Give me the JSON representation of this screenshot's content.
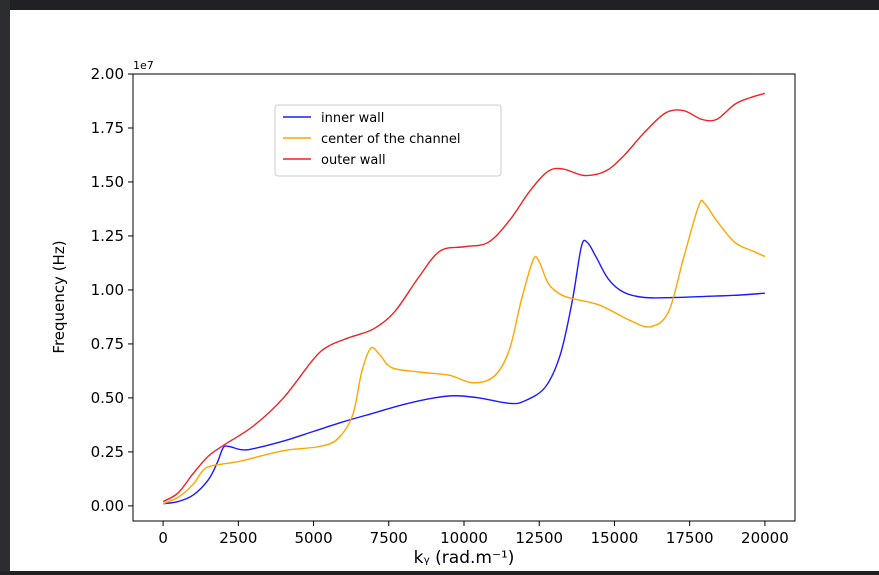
{
  "chart_data": {
    "type": "line",
    "xlabel": "kᵧ (rad.m⁻¹)",
    "ylabel": "Frequency (Hz)",
    "y_offset_label": "1e7",
    "xlim": [
      -1000,
      21000
    ],
    "ylim": [
      -0.07,
      2.0
    ],
    "x_ticks": [
      0,
      2500,
      5000,
      7500,
      10000,
      12500,
      15000,
      17500,
      20000
    ],
    "x_tick_labels": [
      "0",
      "2500",
      "5000",
      "7500",
      "10000",
      "12500",
      "15000",
      "17500",
      "20000"
    ],
    "y_ticks": [
      0.0,
      0.25,
      0.5,
      0.75,
      1.0,
      1.25,
      1.5,
      1.75,
      2.0
    ],
    "y_tick_labels": [
      "0.00",
      "0.25",
      "0.50",
      "0.75",
      "1.00",
      "1.25",
      "1.50",
      "1.75",
      "2.00"
    ],
    "y_unit_multiplier": 10000000,
    "grid": false,
    "legend_position": "upper-left-center",
    "series": [
      {
        "name": "inner wall",
        "color": "#1a1aff",
        "points": [
          [
            0,
            0.01
          ],
          [
            500,
            0.02
          ],
          [
            1000,
            0.05
          ],
          [
            1500,
            0.12
          ],
          [
            1800,
            0.2
          ],
          [
            2000,
            0.27
          ],
          [
            2200,
            0.275
          ],
          [
            2600,
            0.26
          ],
          [
            3000,
            0.265
          ],
          [
            4000,
            0.3
          ],
          [
            5000,
            0.345
          ],
          [
            6000,
            0.39
          ],
          [
            7000,
            0.43
          ],
          [
            8000,
            0.47
          ],
          [
            9000,
            0.5
          ],
          [
            9700,
            0.51
          ],
          [
            10500,
            0.5
          ],
          [
            11500,
            0.475
          ],
          [
            12000,
            0.485
          ],
          [
            12700,
            0.55
          ],
          [
            13200,
            0.7
          ],
          [
            13600,
            0.95
          ],
          [
            13900,
            1.2
          ],
          [
            14100,
            1.22
          ],
          [
            14400,
            1.15
          ],
          [
            14800,
            1.05
          ],
          [
            15300,
            0.99
          ],
          [
            16000,
            0.965
          ],
          [
            17000,
            0.965
          ],
          [
            18000,
            0.97
          ],
          [
            19000,
            0.975
          ],
          [
            20000,
            0.985
          ]
        ]
      },
      {
        "name": "center of the channel",
        "color": "#ffa500",
        "points": [
          [
            0,
            0.01
          ],
          [
            500,
            0.04
          ],
          [
            1000,
            0.1
          ],
          [
            1300,
            0.16
          ],
          [
            1600,
            0.185
          ],
          [
            2500,
            0.205
          ],
          [
            3500,
            0.24
          ],
          [
            4200,
            0.26
          ],
          [
            5200,
            0.275
          ],
          [
            5800,
            0.31
          ],
          [
            6300,
            0.42
          ],
          [
            6600,
            0.62
          ],
          [
            6900,
            0.73
          ],
          [
            7200,
            0.7
          ],
          [
            7600,
            0.64
          ],
          [
            8500,
            0.62
          ],
          [
            9500,
            0.605
          ],
          [
            10300,
            0.57
          ],
          [
            11000,
            0.6
          ],
          [
            11500,
            0.72
          ],
          [
            11900,
            0.95
          ],
          [
            12300,
            1.14
          ],
          [
            12500,
            1.13
          ],
          [
            12800,
            1.03
          ],
          [
            13200,
            0.98
          ],
          [
            13600,
            0.96
          ],
          [
            14500,
            0.93
          ],
          [
            15500,
            0.86
          ],
          [
            16200,
            0.83
          ],
          [
            16800,
            0.9
          ],
          [
            17300,
            1.15
          ],
          [
            17800,
            1.39
          ],
          [
            18000,
            1.4
          ],
          [
            18400,
            1.32
          ],
          [
            19000,
            1.22
          ],
          [
            19600,
            1.18
          ],
          [
            20000,
            1.155
          ]
        ]
      },
      {
        "name": "outer wall",
        "color": "#ee2222",
        "points": [
          [
            0,
            0.02
          ],
          [
            500,
            0.06
          ],
          [
            1000,
            0.15
          ],
          [
            1500,
            0.23
          ],
          [
            2000,
            0.28
          ],
          [
            3000,
            0.37
          ],
          [
            4000,
            0.5
          ],
          [
            5000,
            0.68
          ],
          [
            5500,
            0.74
          ],
          [
            6200,
            0.78
          ],
          [
            7000,
            0.82
          ],
          [
            7700,
            0.9
          ],
          [
            8500,
            1.06
          ],
          [
            9200,
            1.18
          ],
          [
            10000,
            1.2
          ],
          [
            10800,
            1.22
          ],
          [
            11500,
            1.32
          ],
          [
            12200,
            1.46
          ],
          [
            12800,
            1.55
          ],
          [
            13300,
            1.56
          ],
          [
            14000,
            1.53
          ],
          [
            14700,
            1.55
          ],
          [
            15300,
            1.62
          ],
          [
            16000,
            1.73
          ],
          [
            16700,
            1.82
          ],
          [
            17300,
            1.83
          ],
          [
            17900,
            1.79
          ],
          [
            18400,
            1.79
          ],
          [
            19000,
            1.86
          ],
          [
            19500,
            1.89
          ],
          [
            20000,
            1.91
          ]
        ]
      }
    ]
  }
}
